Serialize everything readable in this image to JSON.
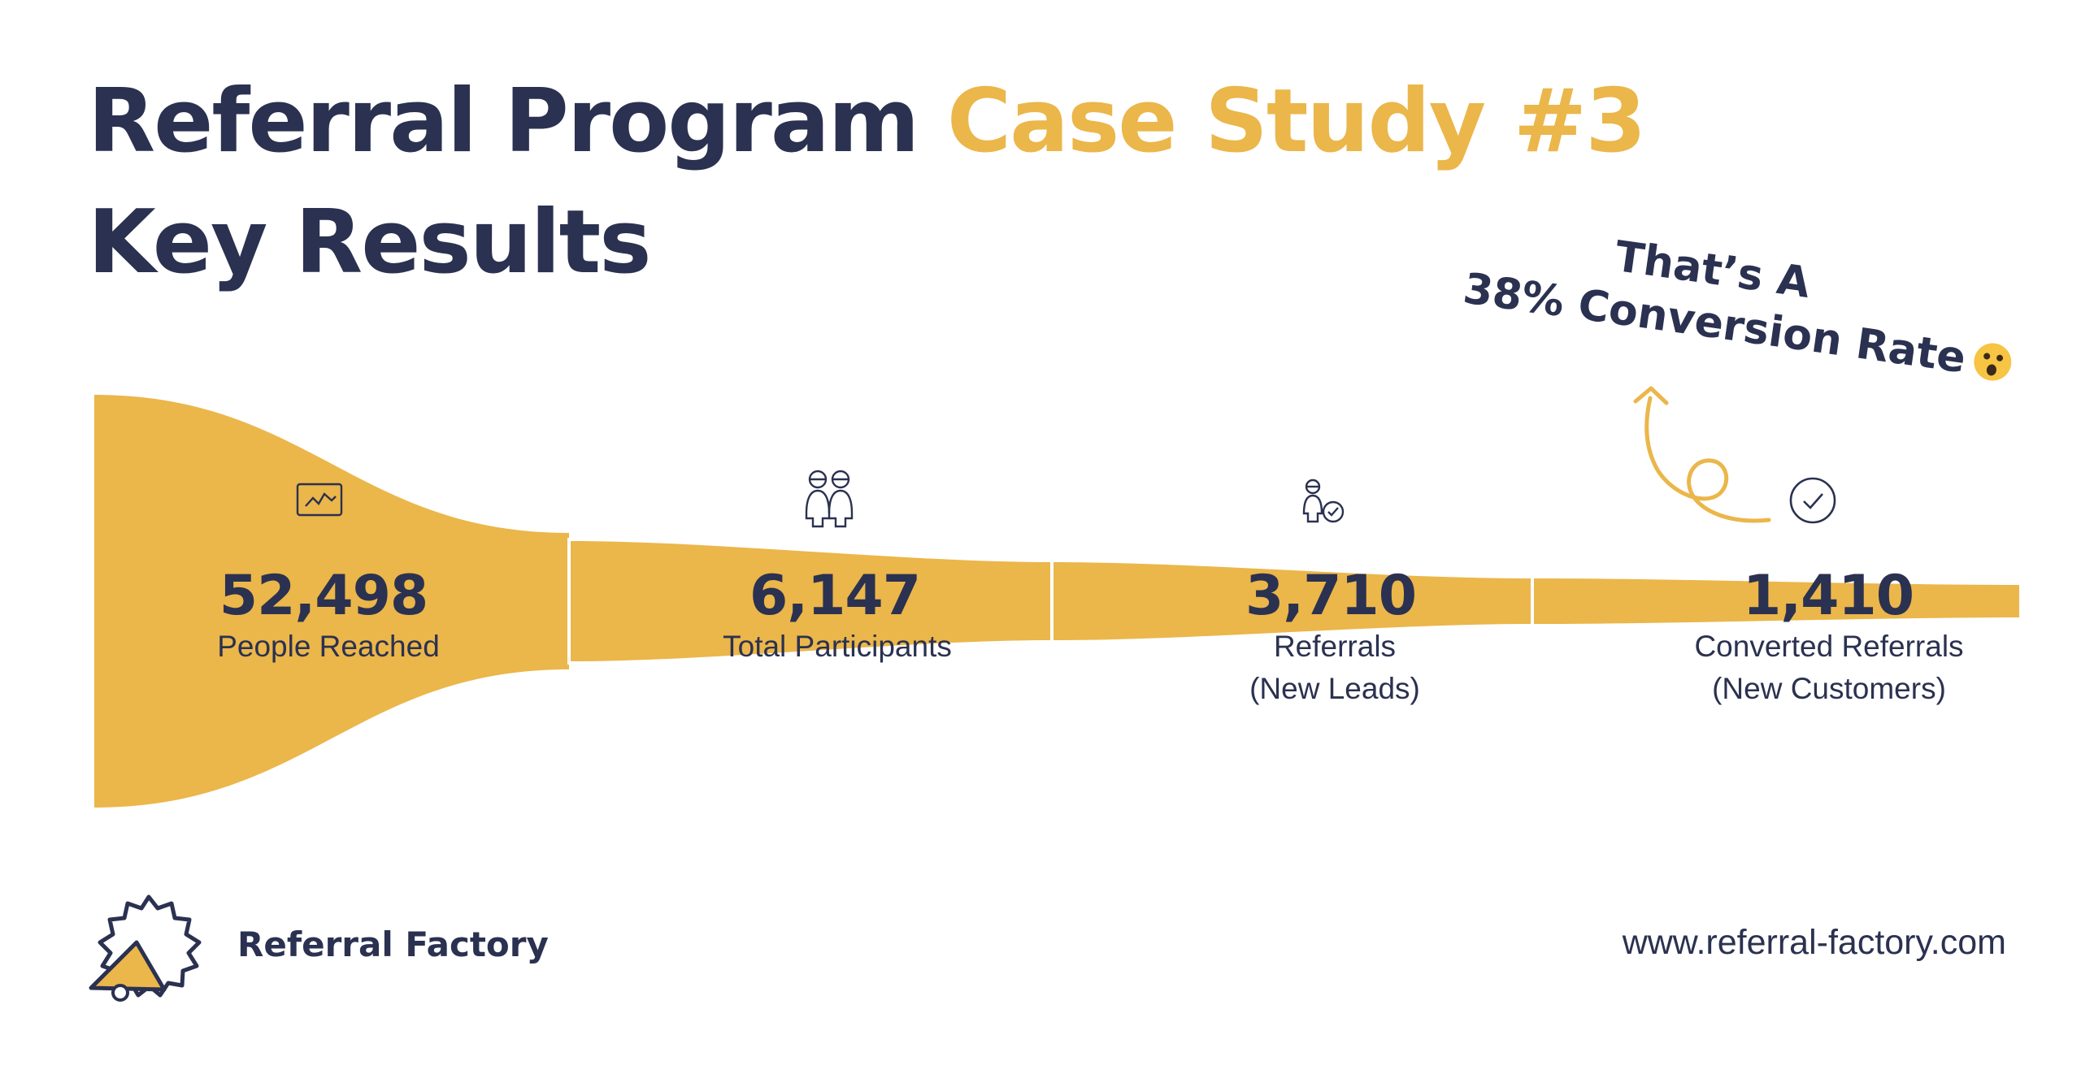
{
  "title": {
    "line1_main": "Referral Program",
    "line1_accent": "Case Study #3",
    "line2": "Key Results"
  },
  "callout": {
    "line1": "That’s A",
    "line2": "38% Conversion Rate",
    "emoji": "astonished-face-icon"
  },
  "colors": {
    "navy": "#2b3150",
    "accent": "#ebb64a"
  },
  "chart_data": {
    "type": "funnel",
    "title": "Key Results",
    "categories": [
      "People Reached",
      "Total Participants",
      "Referrals (New Leads)",
      "Converted Referrals (New Customers)"
    ],
    "values": [
      52498,
      6147,
      3710,
      1410
    ],
    "stages": [
      {
        "value_label": "52,498",
        "label_lines": [
          "People Reached"
        ],
        "icon": "chart-icon"
      },
      {
        "value_label": "6,147",
        "label_lines": [
          "Total Participants"
        ],
        "icon": "people-icon"
      },
      {
        "value_label": "3,710",
        "label_lines": [
          "Referrals",
          "(New Leads)"
        ],
        "icon": "person-check-icon"
      },
      {
        "value_label": "1,410",
        "label_lines": [
          "Converted Referrals",
          "(New Customers)"
        ],
        "icon": "check-circle-icon"
      }
    ]
  },
  "footer": {
    "brand_name": "Referral Factory",
    "brand_logo": "megaphone-gear-logo",
    "url": "www.referral-factory.com"
  }
}
